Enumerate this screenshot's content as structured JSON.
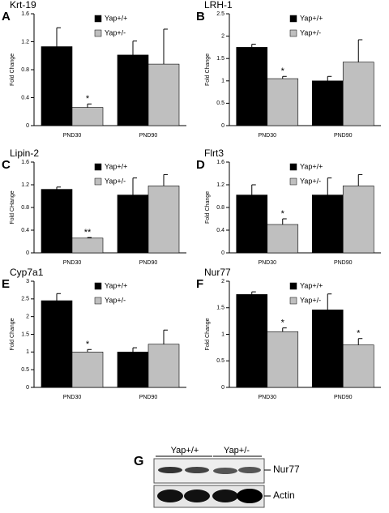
{
  "chart_data": [
    {
      "type": "bar",
      "panel": "A",
      "title": "Krt-19",
      "y_label": "Fold Change",
      "categories": [
        "PND30",
        "PND90"
      ],
      "series": [
        {
          "name": "Yap+/+",
          "color": "#000000",
          "values": [
            1.13,
            1.01
          ],
          "errors": [
            0.27,
            0.2
          ]
        },
        {
          "name": "Yap+/-",
          "color": "#bfbfbf",
          "values": [
            0.26,
            0.88
          ],
          "errors": [
            0.05,
            0.5
          ]
        }
      ],
      "annotations": [
        {
          "text": "*",
          "series": 1,
          "category": 0
        }
      ],
      "ylim": [
        0,
        1.6
      ],
      "yticks": [
        0,
        0.4,
        0.8,
        1.2,
        1.6
      ]
    },
    {
      "type": "bar",
      "panel": "B",
      "title": "LRH-1",
      "y_label": "Fold Change",
      "categories": [
        "PND30",
        "PND90"
      ],
      "series": [
        {
          "name": "Yap+/+",
          "color": "#000000",
          "values": [
            1.75,
            1.0
          ],
          "errors": [
            0.07,
            0.1
          ]
        },
        {
          "name": "Yap+/-",
          "color": "#bfbfbf",
          "values": [
            1.05,
            1.42
          ],
          "errors": [
            0.05,
            0.5
          ]
        }
      ],
      "annotations": [
        {
          "text": "*",
          "series": 1,
          "category": 0
        }
      ],
      "ylim": [
        0,
        2.5
      ],
      "yticks": [
        0,
        0.5,
        1,
        1.5,
        2,
        2.5
      ]
    },
    {
      "type": "bar",
      "panel": "C",
      "title": "Lipin-2",
      "y_label": "Fold CHange",
      "categories": [
        "PND30",
        "PND90"
      ],
      "series": [
        {
          "name": "Yap+/+",
          "color": "#000000",
          "values": [
            1.12,
            1.02
          ],
          "errors": [
            0.04,
            0.3
          ]
        },
        {
          "name": "Yap+/-",
          "color": "#bfbfbf",
          "values": [
            0.26,
            1.18
          ],
          "errors": [
            0.01,
            0.2
          ]
        }
      ],
      "annotations": [
        {
          "text": "**",
          "series": 1,
          "category": 0
        }
      ],
      "ylim": [
        0,
        1.6
      ],
      "yticks": [
        0,
        0.4,
        0.8,
        1.2,
        1.6
      ]
    },
    {
      "type": "bar",
      "panel": "D",
      "title": "Flrt3",
      "y_label": "Fold Change",
      "categories": [
        "PND30",
        "PND90"
      ],
      "series": [
        {
          "name": "Yap+/+",
          "color": "#000000",
          "values": [
            1.02,
            1.02
          ],
          "errors": [
            0.18,
            0.3
          ]
        },
        {
          "name": "Yap+/-",
          "color": "#bfbfbf",
          "values": [
            0.5,
            1.18
          ],
          "errors": [
            0.1,
            0.2
          ]
        }
      ],
      "annotations": [
        {
          "text": "*",
          "series": 1,
          "category": 0
        }
      ],
      "ylim": [
        0,
        1.6
      ],
      "yticks": [
        0,
        0.4,
        0.8,
        1.2,
        1.6
      ]
    },
    {
      "type": "bar",
      "panel": "E",
      "title": "Cyp7a1",
      "y_label": "Fold Change",
      "categories": [
        "PND30",
        "PND90"
      ],
      "series": [
        {
          "name": "Yap+/+",
          "color": "#000000",
          "values": [
            2.45,
            1.0
          ],
          "errors": [
            0.2,
            0.12
          ]
        },
        {
          "name": "Yap+/-",
          "color": "#bfbfbf",
          "values": [
            1.0,
            1.22
          ],
          "errors": [
            0.07,
            0.4
          ]
        }
      ],
      "annotations": [
        {
          "text": "*",
          "series": 1,
          "category": 0
        }
      ],
      "ylim": [
        0,
        3
      ],
      "yticks": [
        0,
        0.5,
        1,
        1.5,
        2,
        2.5,
        3
      ]
    },
    {
      "type": "bar",
      "panel": "F",
      "title": "Nur77",
      "y_label": "Fold Change",
      "categories": [
        "PND30",
        "PND90"
      ],
      "series": [
        {
          "name": "Yap+/+",
          "color": "#000000",
          "values": [
            1.75,
            1.46
          ],
          "errors": [
            0.05,
            0.3
          ]
        },
        {
          "name": "Yap+/-",
          "color": "#bfbfbf",
          "values": [
            1.05,
            0.8
          ],
          "errors": [
            0.07,
            0.12
          ]
        }
      ],
      "annotations": [
        {
          "text": "*",
          "series": 1,
          "category": 0
        },
        {
          "text": "*",
          "series": 1,
          "category": 1
        }
      ],
      "ylim": [
        0,
        2
      ],
      "yticks": [
        0,
        0.5,
        1,
        1.5,
        2
      ]
    }
  ],
  "blot": {
    "panel": "G",
    "groups": [
      "Yap+/+",
      "Yap+/-"
    ],
    "rows": [
      "Nur77",
      "Actin"
    ]
  }
}
